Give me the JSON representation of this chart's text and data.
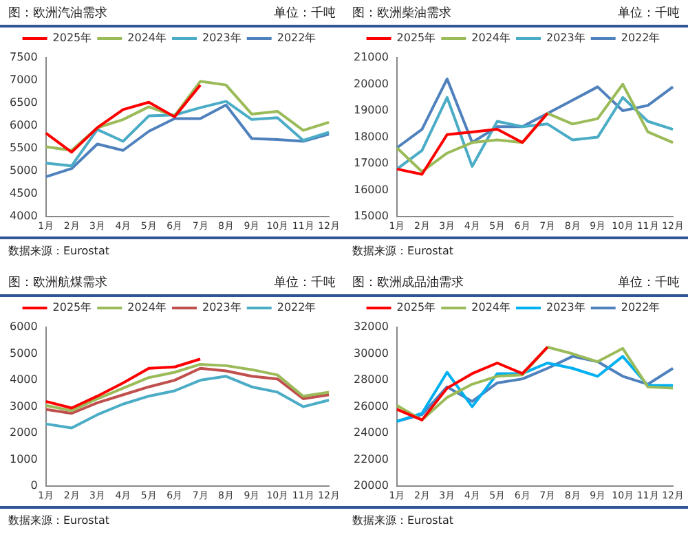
{
  "chart_data": [
    {
      "type": "line",
      "title": "图：欧洲汽油需求",
      "subtitle": "单位：千吨",
      "annotations": [
        "数据来源：Eurostat"
      ],
      "categories": [
        "1月",
        "2月",
        "3月",
        "4月",
        "5月",
        "6月",
        "7月",
        "8月",
        "9月",
        "10月",
        "11月",
        "12月"
      ],
      "series": [
        {
          "name": "2022年",
          "color": "#4f81bd",
          "values": [
            4880,
            5060,
            5600,
            5460,
            5880,
            6160,
            6160,
            6460,
            5720,
            5700,
            5660,
            5820
          ]
        },
        {
          "name": "2023年",
          "color": "#4bacc6",
          "values": [
            5180,
            5120,
            5920,
            5660,
            6220,
            6240,
            6400,
            6540,
            6140,
            6180,
            5680,
            5860
          ]
        },
        {
          "name": "2024年",
          "color": "#9bbb59",
          "values": [
            5540,
            5460,
            5960,
            6140,
            6420,
            6220,
            6980,
            6900,
            6260,
            6320,
            5900,
            6080
          ]
        },
        {
          "name": "2025年",
          "color": "#ff0000",
          "values": [
            5840,
            5420,
            5960,
            6360,
            6520,
            6200,
            6900,
            null,
            null,
            null,
            null,
            null
          ]
        }
      ],
      "ylim": [
        4000,
        7500
      ],
      "yticks": [
        4000,
        4500,
        5000,
        5500,
        6000,
        6500,
        7000,
        7500
      ],
      "grid": false,
      "legend": "top",
      "marker": "none",
      "line_style": "solid"
    },
    {
      "type": "line",
      "title": "图：欧洲柴油需求",
      "subtitle": "单位：千吨",
      "annotations": [
        "数据来源：Eurostat"
      ],
      "categories": [
        "1月",
        "2月",
        "3月",
        "4月",
        "5月",
        "6月",
        "7月",
        "8月",
        "9月",
        "10月",
        "11月",
        "12月"
      ],
      "series": [
        {
          "name": "2022年",
          "color": "#4f81bd",
          "values": [
            17600,
            18300,
            20200,
            17800,
            18400,
            18400,
            18900,
            19400,
            19900,
            19000,
            19200,
            19900
          ]
        },
        {
          "name": "2023年",
          "color": "#4bacc6",
          "values": [
            16800,
            17500,
            19500,
            16900,
            18600,
            18400,
            18500,
            17900,
            18000,
            19500,
            18600,
            18300
          ]
        },
        {
          "name": "2024年",
          "color": "#9bbb59",
          "values": [
            17600,
            16700,
            17400,
            17800,
            17900,
            17800,
            18900,
            18500,
            18700,
            20000,
            18200,
            17800
          ]
        },
        {
          "name": "2025年",
          "color": "#ff0000",
          "values": [
            16800,
            16600,
            18100,
            18200,
            18300,
            17800,
            18900,
            null,
            null,
            null,
            null,
            null
          ]
        }
      ],
      "ylim": [
        15000,
        21000
      ],
      "yticks": [
        15000,
        16000,
        17000,
        18000,
        19000,
        20000,
        21000
      ],
      "grid": false,
      "legend": "top",
      "marker": "none",
      "line_style": "solid"
    },
    {
      "type": "line",
      "title": "图：欧洲航煤需求",
      "subtitle": "单位：千吨",
      "annotations": [
        "数据来源：Eurostat"
      ],
      "categories": [
        "1月",
        "2月",
        "3月",
        "4月",
        "5月",
        "6月",
        "7月",
        "8月",
        "9月",
        "10月",
        "11月",
        "12月"
      ],
      "series": [
        {
          "name": "2022年",
          "color": "#4bacc6",
          "values": [
            2350,
            2200,
            2700,
            3100,
            3400,
            3600,
            4000,
            4150,
            3750,
            3550,
            3000,
            3250
          ]
        },
        {
          "name": "2023年",
          "color": "#c0504d",
          "values": [
            2900,
            2750,
            3150,
            3450,
            3750,
            4000,
            4450,
            4350,
            4150,
            4050,
            3300,
            3450
          ]
        },
        {
          "name": "2024年",
          "color": "#9bbb59",
          "values": [
            3050,
            2850,
            3300,
            3700,
            4100,
            4300,
            4600,
            4550,
            4400,
            4200,
            3400,
            3550
          ]
        },
        {
          "name": "2025年",
          "color": "#ff0000",
          "values": [
            3200,
            2950,
            3400,
            3900,
            4450,
            4500,
            4800,
            null,
            null,
            null,
            null,
            null
          ]
        }
      ],
      "ylim": [
        0,
        6000
      ],
      "yticks": [
        0,
        1000,
        2000,
        3000,
        4000,
        5000,
        6000
      ],
      "grid": false,
      "legend": "top",
      "marker": "none",
      "line_style": "solid"
    },
    {
      "type": "line",
      "title": "图：欧洲成品油需求",
      "subtitle": "单位：千吨",
      "annotations": [
        "数据来源：Eurostat"
      ],
      "categories": [
        "1月",
        "2月",
        "3月",
        "4月",
        "5月",
        "6月",
        "7月",
        "8月",
        "9月",
        "10月",
        "11月",
        "12月"
      ],
      "series": [
        {
          "name": "2022年",
          "color": "#4f81bd",
          "values": [
            24900,
            25400,
            27500,
            26400,
            27800,
            28100,
            28900,
            29800,
            29400,
            28300,
            27700,
            28900
          ]
        },
        {
          "name": "2023年",
          "color": "#00b0f0",
          "values": [
            24900,
            25500,
            28600,
            26000,
            28500,
            28500,
            29300,
            28900,
            28300,
            29800,
            27600,
            27600
          ]
        },
        {
          "name": "2024年",
          "color": "#9bbb59",
          "values": [
            26100,
            25000,
            26700,
            27700,
            28300,
            28400,
            30500,
            30000,
            29400,
            30400,
            27500,
            27400
          ]
        },
        {
          "name": "2025年",
          "color": "#ff0000",
          "values": [
            25800,
            25000,
            27400,
            28500,
            29300,
            28500,
            30500,
            null,
            null,
            null,
            null,
            null
          ]
        }
      ],
      "ylim": [
        20000,
        32000
      ],
      "yticks": [
        20000,
        22000,
        24000,
        26000,
        28000,
        30000,
        32000
      ],
      "grid": false,
      "legend": "top",
      "marker": "none",
      "line_style": "solid"
    }
  ]
}
